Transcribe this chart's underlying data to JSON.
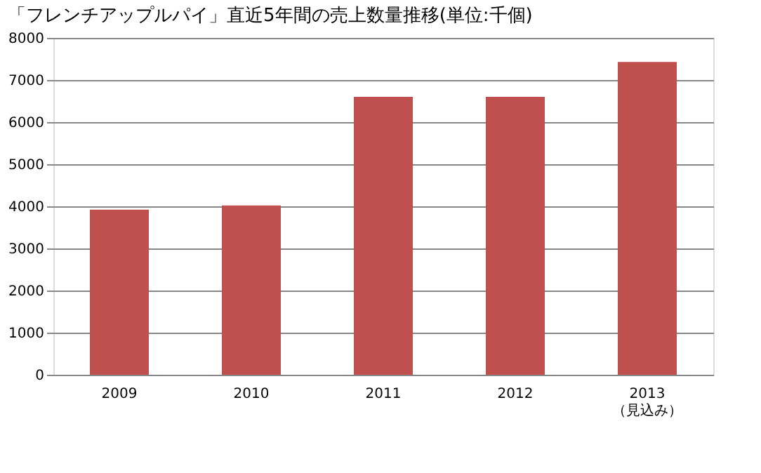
{
  "chart_data": {
    "type": "bar",
    "title": "「フレンチアップルパイ」直近5年間の売上数量推移(単位:千個)",
    "categories": [
      "2009",
      "2010",
      "2011",
      "2012",
      "2013\n（見込み）"
    ],
    "values": [
      3920,
      4020,
      6600,
      6600,
      7430
    ],
    "color": "#c0504d",
    "ylim": [
      0,
      8000
    ],
    "yticks": [
      0,
      1000,
      2000,
      3000,
      4000,
      5000,
      6000,
      7000,
      8000
    ],
    "grid": "y"
  }
}
